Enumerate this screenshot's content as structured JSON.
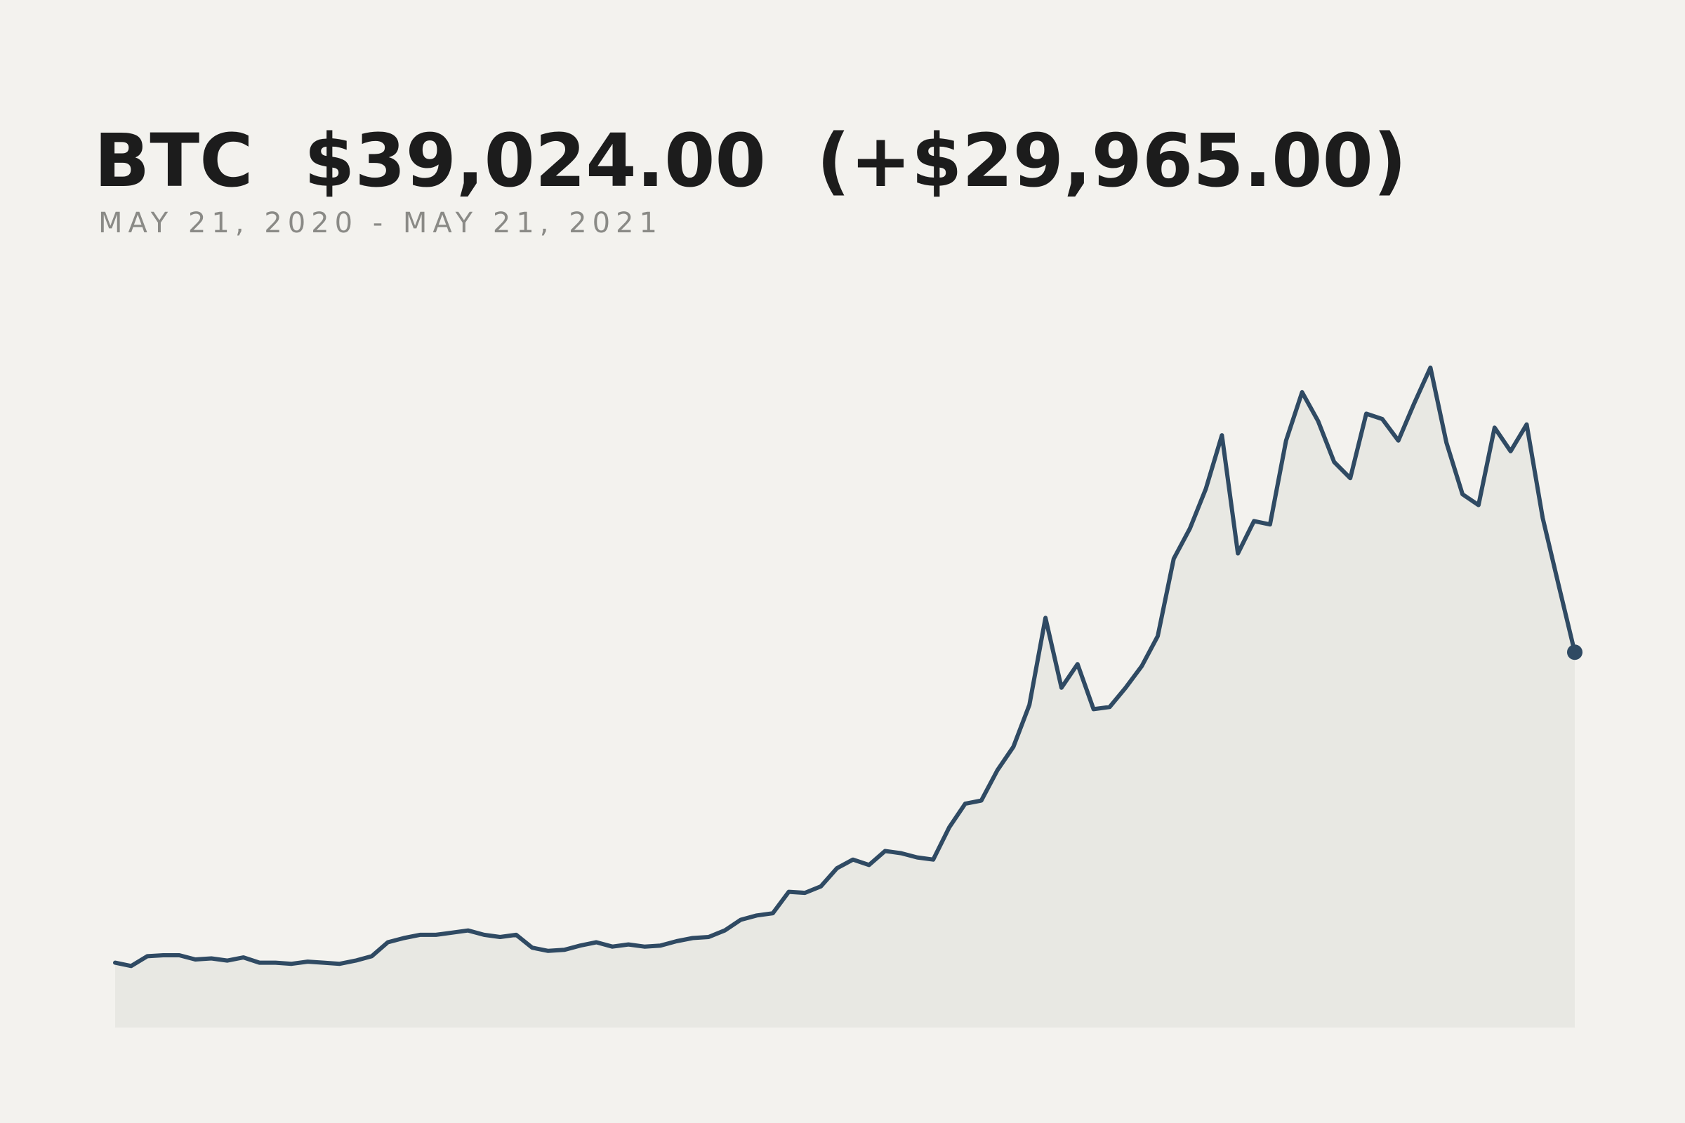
{
  "chart_data": {
    "type": "area",
    "title": "BTC  $39,024.00  (+$29,965.00)",
    "subtitle": "MAY 21, 2020 - MAY 21, 2021",
    "color": "#2f4a63",
    "fill": "#e8e8e3",
    "ylim": [
      2800,
      70000
    ],
    "values": [
      9059,
      8740,
      9680,
      9780,
      9780,
      9370,
      9470,
      9260,
      9570,
      9060,
      9060,
      8950,
      9160,
      9060,
      8950,
      9260,
      9680,
      11030,
      11440,
      11750,
      11750,
      11960,
      12170,
      11750,
      11540,
      11750,
      10510,
      10200,
      10300,
      10710,
      11030,
      10610,
      10820,
      10610,
      10710,
      11130,
      11440,
      11540,
      12170,
      13200,
      13620,
      13830,
      15900,
      15800,
      16420,
      18180,
      19010,
      18490,
      19840,
      19630,
      19220,
      19010,
      22120,
      24400,
      24710,
      27620,
      29900,
      33940,
      42340,
      35600,
      37880,
      33530,
      33740,
      35600,
      37680,
      40580,
      48050,
      50950,
      54790,
      59970,
      48560,
      51680,
      51360,
      59450,
      64120,
      61320,
      57380,
      55820,
      62050,
      61530,
      59450,
      63080,
      66500,
      59250,
      54270,
      53230,
      60700,
      58420,
      61010,
      51990,
      45450,
      39024
    ]
  }
}
